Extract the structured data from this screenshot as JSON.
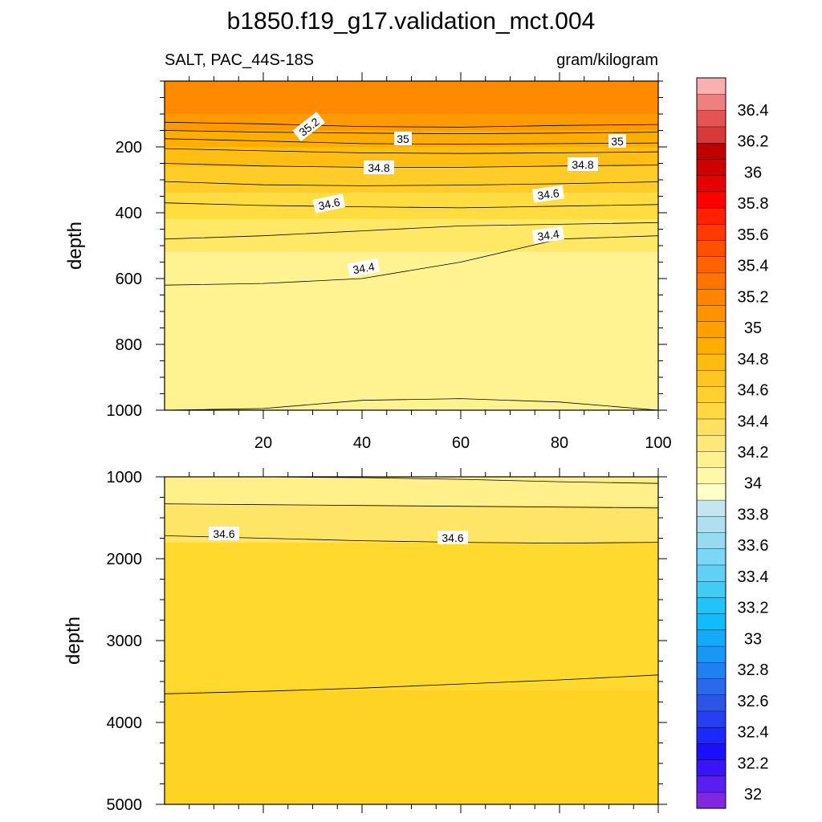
{
  "title": "b1850.f19_g17.validation_mct.004",
  "left_label": "SALT, PAC_44S-18S",
  "right_label": "gram/kilogram",
  "chart_data": {
    "type": "heatmap",
    "title": "b1850.f19_g17.validation_mct.004",
    "variable": "SALT, PAC_44S-18S",
    "units": "gram/kilogram",
    "colors": {
      "background": "#ffffff",
      "contour_line": "#000000"
    },
    "colorbar": {
      "levels": [
        32,
        32.2,
        32.4,
        32.6,
        32.8,
        33,
        33.2,
        33.4,
        33.6,
        33.8,
        34,
        34.1,
        34.2,
        34.3,
        34.4,
        34.5,
        34.6,
        34.7,
        34.8,
        34.9,
        35,
        35.1,
        35.2,
        35.3,
        35.4,
        35.5,
        35.6,
        35.7,
        35.8,
        35.9,
        36,
        36.1,
        36.2,
        36.3,
        36.4,
        36.5
      ],
      "tick_labels": [
        "32",
        "32.2",
        "32.4",
        "32.6",
        "32.8",
        "33",
        "33.2",
        "33.4",
        "33.6",
        "33.8",
        "34",
        "34.2",
        "34.4",
        "34.6",
        "34.8",
        "35",
        "35.2",
        "35.4",
        "35.6",
        "35.8",
        "36",
        "36.2",
        "36.4"
      ],
      "colors": [
        "#8028e0",
        "#5a1ef0",
        "#3a14f8",
        "#1a10ff",
        "#1a2aff",
        "#2440f0",
        "#2c55e6",
        "#2a6ae8",
        "#2080f0",
        "#1898f5",
        "#14aaf8",
        "#10bcfb",
        "#20c4f8",
        "#40ccf5",
        "#60d0f5",
        "#7cd6f5",
        "#98daf0",
        "#b0e0f0",
        "#c4e6f0",
        "#ffffc8",
        "#fff8a8",
        "#fff090",
        "#ffe878",
        "#ffe060",
        "#ffd844",
        "#ffd02e",
        "#ffc620",
        "#ffbc10",
        "#ffae00",
        "#ffa000",
        "#ff9200",
        "#ff8400",
        "#ff7400",
        "#ff6200",
        "#ff5000",
        "#ff3a00",
        "#ff2000",
        "#ff0000",
        "#e80000",
        "#d00000",
        "#c00000",
        "#d83a3a",
        "#e45454",
        "#ee8080",
        "#f8b0b0"
      ]
    },
    "panels": [
      {
        "name": "upper",
        "ylabel": "depth",
        "ylim": [
          1000,
          0
        ],
        "xlim": [
          0,
          100
        ],
        "xticks": [
          20,
          40,
          60,
          80,
          100
        ],
        "yticks": [
          200,
          400,
          600,
          800,
          1000
        ],
        "fill_bands": [
          {
            "from_depth": 0,
            "to_depth": 100,
            "value": 35.3,
            "color": "#ff8a00"
          },
          {
            "from_depth": 100,
            "to_depth": 150,
            "value": 35.2,
            "color": "#ff9a00"
          },
          {
            "from_depth": 150,
            "to_depth": 200,
            "value": 35.0,
            "color": "#ffae00"
          },
          {
            "from_depth": 200,
            "to_depth": 260,
            "value": 34.9,
            "color": "#ffbe14"
          },
          {
            "from_depth": 260,
            "to_depth": 340,
            "value": 34.7,
            "color": "#ffcc28"
          },
          {
            "from_depth": 340,
            "to_depth": 420,
            "value": 34.6,
            "color": "#ffdc40"
          },
          {
            "from_depth": 420,
            "to_depth": 520,
            "value": 34.5,
            "color": "#ffe866"
          },
          {
            "from_depth": 520,
            "to_depth": 1000,
            "value": 34.3,
            "color": "#fff290"
          }
        ],
        "contour_lines": [
          {
            "level": 35.2,
            "depth": [
              125,
              130,
              138,
              140,
              135,
              132
            ]
          },
          {
            "level": 35.1,
            "depth": [
              150,
              155,
              158,
              160,
              158,
              155
            ]
          },
          {
            "level": 35.0,
            "depth": [
              175,
              182,
              190,
              192,
              190,
              188
            ]
          },
          {
            "level": 34.9,
            "depth": [
              205,
              212,
              218,
              220,
              218,
              215
            ]
          },
          {
            "level": 34.8,
            "depth": [
              250,
              258,
              262,
              262,
              258,
              255
            ]
          },
          {
            "level": 34.7,
            "depth": [
              305,
              315,
              318,
              316,
              312,
              306
            ]
          },
          {
            "level": 34.6,
            "depth": [
              370,
              378,
              382,
              385,
              380,
              375
            ]
          },
          {
            "level": 34.5,
            "depth": [
              480,
              470,
              455,
              440,
              435,
              430
            ]
          },
          {
            "level": 34.4,
            "depth": [
              620,
              615,
              600,
              550,
              480,
              470
            ]
          },
          {
            "level": 34.3,
            "depth": [
              1000,
              995,
              970,
              965,
              975,
              1000
            ]
          }
        ],
        "contour_labels": [
          "35.2",
          "35",
          "35",
          "34.8",
          "34.8",
          "34.6",
          "34.6",
          "34.4",
          "34.4"
        ]
      },
      {
        "name": "lower",
        "ylabel": "depth",
        "ylim": [
          5000,
          1000
        ],
        "xticks": [
          20,
          40,
          60,
          80,
          100
        ],
        "yticks": [
          1000,
          2000,
          3000,
          4000,
          5000
        ],
        "fill_bands": [
          {
            "from_depth": 1000,
            "to_depth": 1350,
            "value": 34.5,
            "color": "#fff08a"
          },
          {
            "from_depth": 1350,
            "to_depth": 1800,
            "value": 34.55,
            "color": "#ffe566"
          },
          {
            "from_depth": 1800,
            "to_depth": 3600,
            "value": 34.65,
            "color": "#ffd92e"
          },
          {
            "from_depth": 3600,
            "to_depth": 5400,
            "value": 34.7,
            "color": "#ffd324"
          }
        ],
        "contour_lines": [
          {
            "level": 34.45,
            "depth": [
              1000,
              1000,
              1010,
              1030,
              1060,
              1080
            ]
          },
          {
            "level": 34.55,
            "depth": [
              1330,
              1340,
              1350,
              1360,
              1370,
              1380
            ]
          },
          {
            "level": 34.6,
            "depth": [
              1720,
              1750,
              1780,
              1800,
              1810,
              1800
            ]
          },
          {
            "level": 34.7,
            "depth": [
              3650,
              3620,
              3580,
              3530,
              3480,
              3420
            ]
          }
        ],
        "contour_labels": [
          "34.6",
          "34.6"
        ]
      }
    ]
  }
}
